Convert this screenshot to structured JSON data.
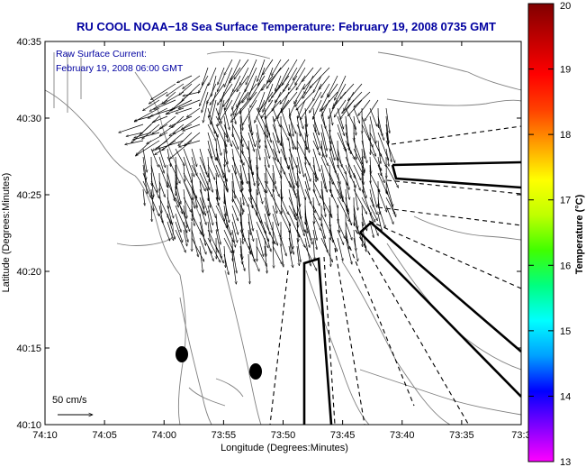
{
  "title": "RU COOL  NOAA−18  Sea Surface Temperature:  February 19, 2008 0735 GMT",
  "annotation": {
    "line1": "Raw Surface Current:",
    "line2": "February 19, 2008 06:00 GMT"
  },
  "scale_label": "50 cm/s",
  "xaxis": {
    "label": "Longitude (Degrees:Minutes)",
    "ticks": [
      "74:10",
      "74:05",
      "74:00",
      "73:55",
      "73:50",
      "73:45",
      "73:40",
      "73:35",
      "73:3"
    ]
  },
  "yaxis": {
    "label": "Latitude (Degrees:Minutes)",
    "ticks": [
      "40:35",
      "40:30",
      "40:25",
      "40:20",
      "40:15",
      "40:10"
    ]
  },
  "colorbar": {
    "label": "Temperature (°C)",
    "ticks": [
      "20",
      "19",
      "18",
      "17",
      "16",
      "15",
      "14",
      "13"
    ],
    "min": 13,
    "max": 20,
    "stops": [
      "#ff00ff",
      "#8000ff",
      "#0000ff",
      "#00a0ff",
      "#00ffff",
      "#00ff80",
      "#40ff00",
      "#c0ff00",
      "#ffff00",
      "#ffa000",
      "#ff4000",
      "#ff0000",
      "#c00000",
      "#800000"
    ]
  }
}
